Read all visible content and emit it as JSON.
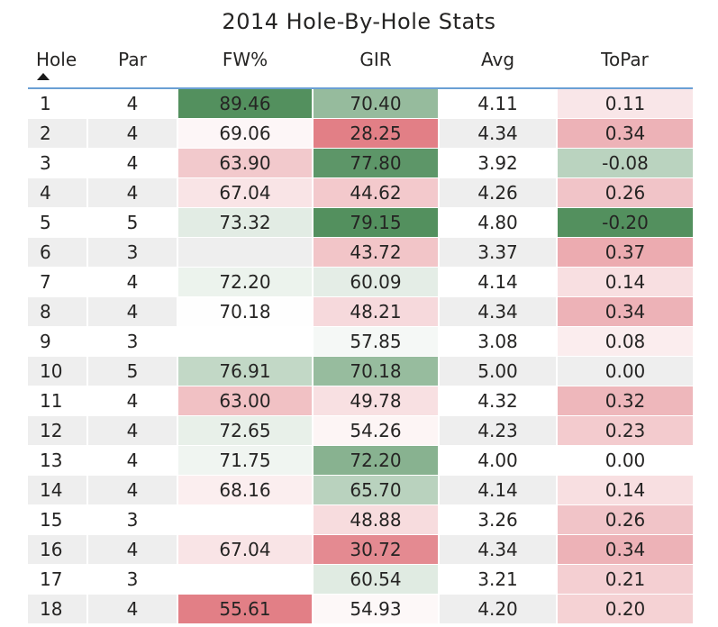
{
  "chart_data": {
    "type": "table",
    "title": "2014 Hole-By-Hole Stats",
    "columns": [
      "Hole",
      "Par",
      "FW%",
      "GIR",
      "Avg",
      "ToPar"
    ],
    "sort": {
      "column": "Hole",
      "direction": "ascending"
    },
    "rows": [
      {
        "hole": "1",
        "par": "4",
        "fw": "89.46",
        "gir": "70.40",
        "avg": "4.11",
        "topar": "0.11"
      },
      {
        "hole": "2",
        "par": "4",
        "fw": "69.06",
        "gir": "28.25",
        "avg": "4.34",
        "topar": "0.34"
      },
      {
        "hole": "3",
        "par": "4",
        "fw": "63.90",
        "gir": "77.80",
        "avg": "3.92",
        "topar": "-0.08"
      },
      {
        "hole": "4",
        "par": "4",
        "fw": "67.04",
        "gir": "44.62",
        "avg": "4.26",
        "topar": "0.26"
      },
      {
        "hole": "5",
        "par": "5",
        "fw": "73.32",
        "gir": "79.15",
        "avg": "4.80",
        "topar": "-0.20"
      },
      {
        "hole": "6",
        "par": "3",
        "fw": "",
        "gir": "43.72",
        "avg": "3.37",
        "topar": "0.37"
      },
      {
        "hole": "7",
        "par": "4",
        "fw": "72.20",
        "gir": "60.09",
        "avg": "4.14",
        "topar": "0.14"
      },
      {
        "hole": "8",
        "par": "4",
        "fw": "70.18",
        "gir": "48.21",
        "avg": "4.34",
        "topar": "0.34"
      },
      {
        "hole": "9",
        "par": "3",
        "fw": "",
        "gir": "57.85",
        "avg": "3.08",
        "topar": "0.08"
      },
      {
        "hole": "10",
        "par": "5",
        "fw": "76.91",
        "gir": "70.18",
        "avg": "5.00",
        "topar": "0.00"
      },
      {
        "hole": "11",
        "par": "4",
        "fw": "63.00",
        "gir": "49.78",
        "avg": "4.32",
        "topar": "0.32"
      },
      {
        "hole": "12",
        "par": "4",
        "fw": "72.65",
        "gir": "54.26",
        "avg": "4.23",
        "topar": "0.23"
      },
      {
        "hole": "13",
        "par": "4",
        "fw": "71.75",
        "gir": "72.20",
        "avg": "4.00",
        "topar": "0.00"
      },
      {
        "hole": "14",
        "par": "4",
        "fw": "68.16",
        "gir": "65.70",
        "avg": "4.14",
        "topar": "0.14"
      },
      {
        "hole": "15",
        "par": "3",
        "fw": "",
        "gir": "48.88",
        "avg": "3.26",
        "topar": "0.26"
      },
      {
        "hole": "16",
        "par": "4",
        "fw": "67.04",
        "gir": "30.72",
        "avg": "4.34",
        "topar": "0.34"
      },
      {
        "hole": "17",
        "par": "3",
        "fw": "",
        "gir": "60.54",
        "avg": "3.21",
        "topar": "0.21"
      },
      {
        "hole": "18",
        "par": "4",
        "fw": "55.61",
        "gir": "54.93",
        "avg": "4.20",
        "topar": "0.20"
      }
    ],
    "colors": {
      "good": "#4a8a56",
      "neutral": "#ffffff",
      "bad": "#e07880",
      "header_rule": "#6a9fd4",
      "stripe": "#eeeeee"
    }
  }
}
